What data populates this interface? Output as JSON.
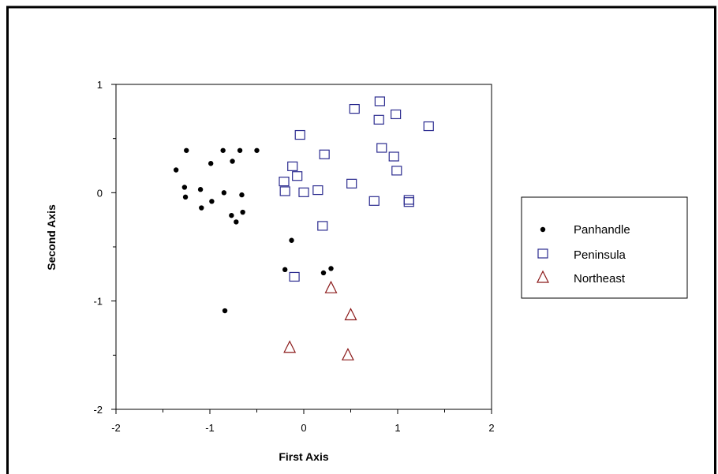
{
  "chart_data": {
    "type": "scatter",
    "xlabel": "First Axis",
    "ylabel": "Second Axis",
    "xlim": [
      -2,
      2
    ],
    "ylim": [
      -2,
      1
    ],
    "xticks": [
      -2,
      -1,
      0,
      1,
      2
    ],
    "yticks": [
      -2,
      -1,
      0,
      1
    ],
    "x_minor_step": 0.5,
    "y_minor_step": 0.5,
    "grid": false,
    "legend_position": "right",
    "series": [
      {
        "name": "Panhandle",
        "marker": "filled-circle",
        "color": "#000000",
        "points": [
          [
            -1.25,
            0.39
          ],
          [
            -0.86,
            0.39
          ],
          [
            -0.68,
            0.39
          ],
          [
            -0.5,
            0.39
          ],
          [
            -1.36,
            0.21
          ],
          [
            -0.99,
            0.27
          ],
          [
            -0.76,
            0.29
          ],
          [
            -1.27,
            0.05
          ],
          [
            -1.1,
            0.03
          ],
          [
            -0.85,
            0.0
          ],
          [
            -0.66,
            -0.02
          ],
          [
            -1.26,
            -0.04
          ],
          [
            -0.98,
            -0.08
          ],
          [
            -1.09,
            -0.14
          ],
          [
            -0.65,
            -0.18
          ],
          [
            -0.77,
            -0.21
          ],
          [
            -0.72,
            -0.27
          ],
          [
            -0.13,
            -0.44
          ],
          [
            -0.2,
            -0.71
          ],
          [
            0.29,
            -0.7
          ],
          [
            0.21,
            -0.74
          ],
          [
            -0.84,
            -1.09
          ]
        ]
      },
      {
        "name": "Peninsula",
        "marker": "open-square",
        "color": "#2b2b8f",
        "points": [
          [
            0.54,
            0.77
          ],
          [
            0.81,
            0.84
          ],
          [
            0.98,
            0.72
          ],
          [
            0.8,
            0.67
          ],
          [
            1.33,
            0.61
          ],
          [
            -0.04,
            0.53
          ],
          [
            0.83,
            0.41
          ],
          [
            0.22,
            0.35
          ],
          [
            0.96,
            0.33
          ],
          [
            -0.12,
            0.24
          ],
          [
            0.99,
            0.2
          ],
          [
            -0.07,
            0.15
          ],
          [
            -0.21,
            0.1
          ],
          [
            0.51,
            0.08
          ],
          [
            0.15,
            0.02
          ],
          [
            -0.2,
            0.01
          ],
          [
            0.0,
            0.0
          ],
          [
            0.75,
            -0.08
          ],
          [
            1.12,
            -0.07
          ],
          [
            1.12,
            -0.09
          ],
          [
            0.2,
            -0.31
          ],
          [
            -0.1,
            -0.78
          ]
        ]
      },
      {
        "name": "Northeast",
        "marker": "open-triangle",
        "color": "#8b1a1a",
        "points": [
          [
            0.29,
            -0.88
          ],
          [
            0.5,
            -1.13
          ],
          [
            -0.15,
            -1.43
          ],
          [
            0.47,
            -1.5
          ]
        ]
      }
    ]
  }
}
